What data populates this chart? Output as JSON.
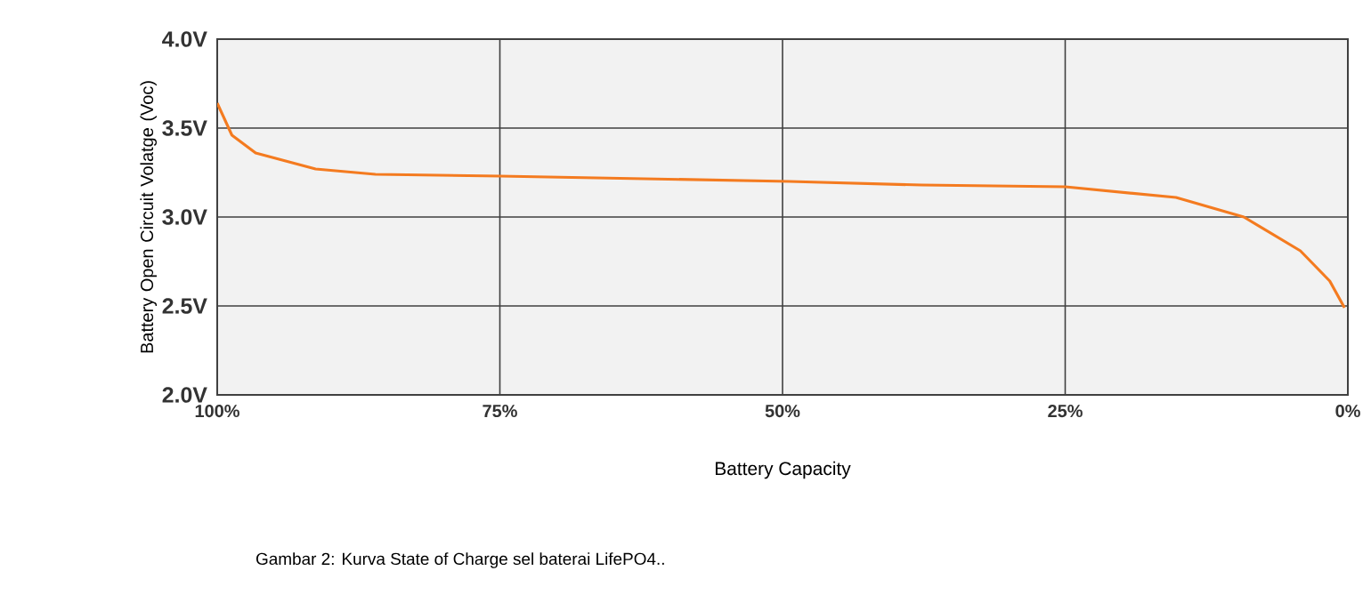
{
  "chart_data": {
    "type": "line",
    "ylabel": "Battery Open Circuit Volatge (Voc)",
    "xlabel": "Battery Capacity",
    "annotations": [
      "Gambar 2: Kurva State of Charge sel baterai LifePO4.."
    ],
    "xlim": [
      100,
      0
    ],
    "ylim": [
      2.0,
      4.0
    ],
    "xticks": [
      {
        "value": 100,
        "label": "100%"
      },
      {
        "value": 75,
        "label": "75%"
      },
      {
        "value": 50,
        "label": "50%"
      },
      {
        "value": 25,
        "label": "25%"
      },
      {
        "value": 0,
        "label": "0%"
      }
    ],
    "yticks": [
      {
        "value": 2.0,
        "label": "2.0V"
      },
      {
        "value": 2.5,
        "label": "2.5V"
      },
      {
        "value": 3.0,
        "label": "3.0V"
      },
      {
        "value": 3.5,
        "label": "3.5V"
      },
      {
        "value": 4.0,
        "label": "4.0V"
      }
    ],
    "grid": true,
    "marker": "none",
    "line_style": "solid",
    "series": [
      {
        "color": "#f47b20",
        "x": [
          100,
          98.7,
          96.6,
          91.3,
          86.0,
          75,
          49.4,
          37.7,
          25,
          15.2,
          9.2,
          4.2,
          1.6,
          0.3
        ],
        "values": [
          3.64,
          3.46,
          3.36,
          3.27,
          3.24,
          3.23,
          3.2,
          3.18,
          3.17,
          3.11,
          3.0,
          2.81,
          2.64,
          2.49
        ]
      }
    ]
  }
}
